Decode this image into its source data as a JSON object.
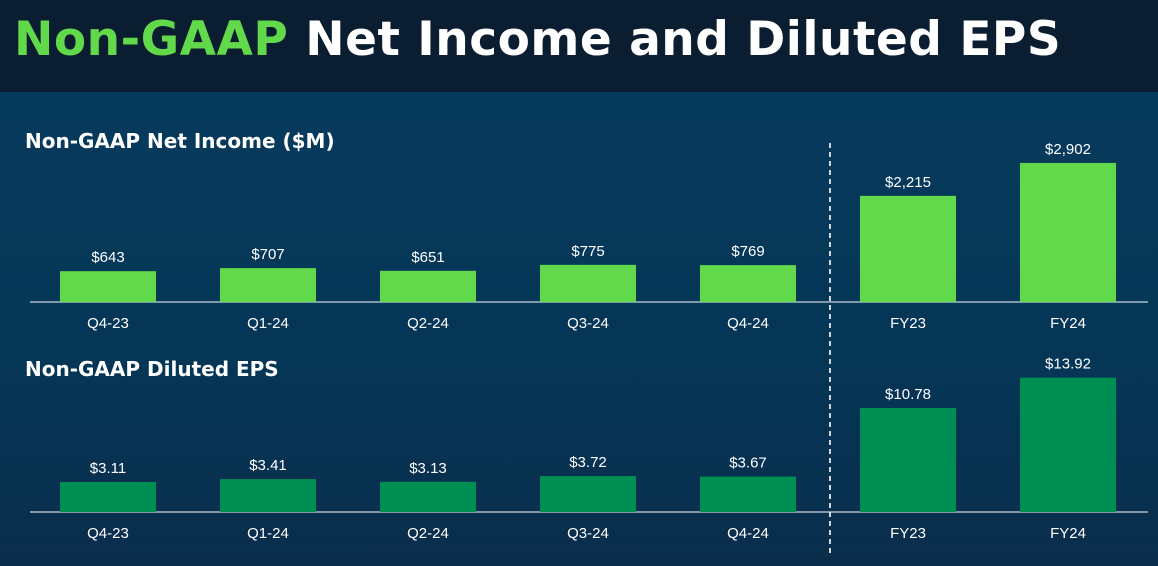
{
  "header": {
    "title_accent": "Non-GAAP",
    "title_rest": " Net Income and Diluted EPS"
  },
  "colors": {
    "net_income_bar": "#61d94a",
    "eps_bar": "#008f52",
    "title_accent": "#61d94a"
  },
  "chart_data": [
    {
      "type": "bar",
      "title": "Non-GAAP Net Income ($M)",
      "categories": [
        "Q4-23",
        "Q1-24",
        "Q2-24",
        "Q3-24",
        "Q4-24",
        "FY23",
        "FY24"
      ],
      "values": [
        643,
        707,
        651,
        775,
        769,
        2215,
        2902
      ],
      "value_labels": [
        "$643",
        "$707",
        "$651",
        "$775",
        "$769",
        "$2,215",
        "$2,902"
      ],
      "ylim": [
        0,
        3200
      ],
      "grid": false
    },
    {
      "type": "bar",
      "title": "Non-GAAP Diluted EPS",
      "categories": [
        "Q4-23",
        "Q1-24",
        "Q2-24",
        "Q3-24",
        "Q4-24",
        "FY23",
        "FY24"
      ],
      "values": [
        3.11,
        3.41,
        3.13,
        3.72,
        3.67,
        10.78,
        13.92
      ],
      "value_labels": [
        "$3.11",
        "$3.41",
        "$3.13",
        "$3.72",
        "$3.67",
        "$10.78",
        "$13.92"
      ],
      "ylim": [
        0,
        15
      ],
      "grid": false
    }
  ]
}
